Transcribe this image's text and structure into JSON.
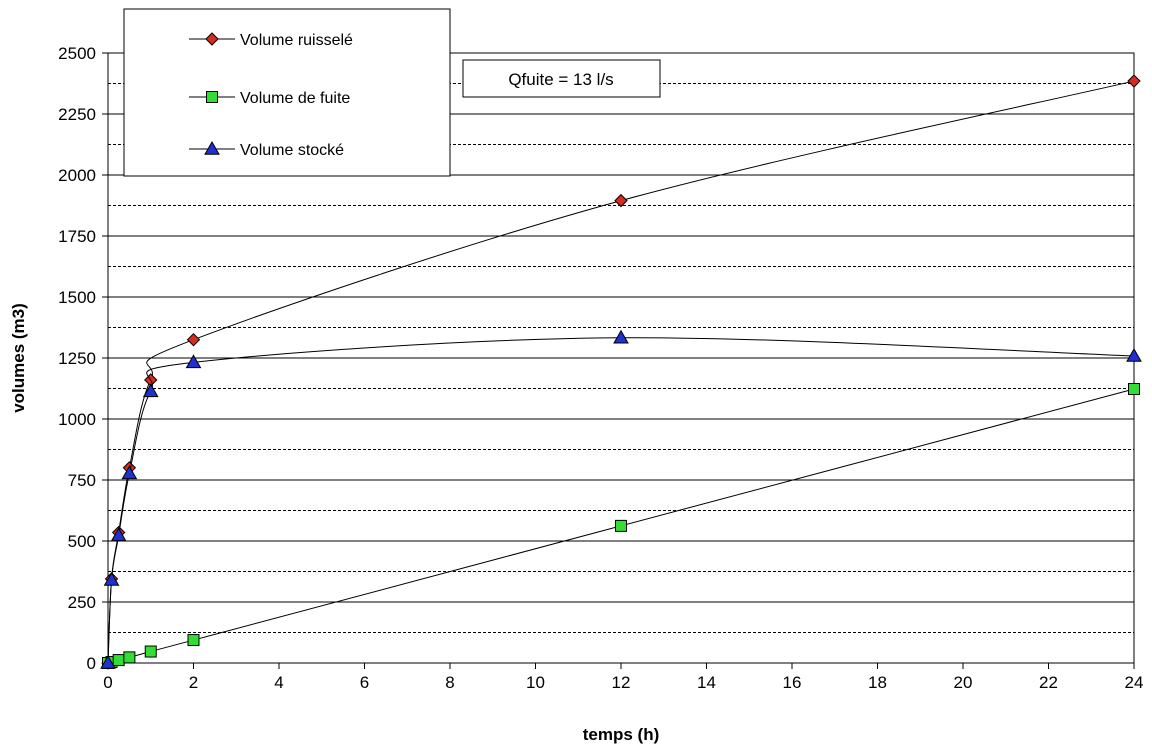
{
  "chart_data": {
    "type": "line",
    "xlabel": "temps (h)",
    "ylabel": "volumes (m3)",
    "xlim": [
      0,
      24
    ],
    "ylim": [
      0,
      2500
    ],
    "x_ticks": [
      "0",
      "2",
      "4",
      "6",
      "8",
      "10",
      "12",
      "14",
      "16",
      "18",
      "20",
      "22",
      "24"
    ],
    "y_ticks": [
      "0",
      "250",
      "500",
      "750",
      "1000",
      "1250",
      "1500",
      "1750",
      "2000",
      "2250",
      "2500"
    ],
    "grid": {
      "major": "solid",
      "minor": "dashed"
    },
    "legend_position": "top-left",
    "annotation": "Qfuite = 13 l/s",
    "series": [
      {
        "name": "Volume ruisselé",
        "marker": "diamond",
        "marker_color": "#d62b1f",
        "x": [
          0,
          0.083,
          0.25,
          0.5,
          1,
          2,
          12,
          24
        ],
        "y": [
          0,
          345,
          535,
          800,
          1160,
          1325,
          1895,
          2385
        ]
      },
      {
        "name": "Volume de fuite",
        "marker": "square",
        "marker_color": "#33dd33",
        "x": [
          0,
          0.083,
          0.25,
          0.5,
          1,
          2,
          12,
          24
        ],
        "y": [
          0,
          4,
          12,
          23,
          47,
          94,
          562,
          1123
        ]
      },
      {
        "name": "Volume stocké",
        "marker": "triangle",
        "marker_color": "#1f2fd0",
        "x": [
          0,
          0.083,
          0.25,
          0.5,
          1,
          2,
          12,
          24
        ],
        "y": [
          0,
          340,
          523,
          777,
          1113,
          1232,
          1333,
          1258
        ]
      }
    ]
  }
}
